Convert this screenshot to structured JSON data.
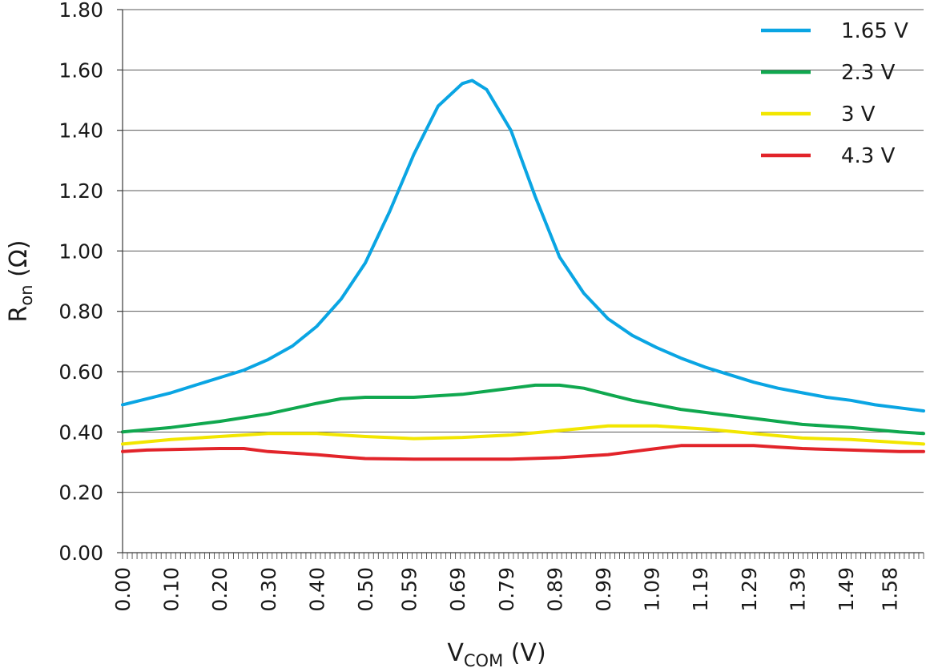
{
  "chart_data": {
    "type": "line",
    "xlabel": {
      "main": "V",
      "sub": "COM",
      "unit": " (V)"
    },
    "ylabel": {
      "main": "R",
      "sub": "on",
      "unit": " (Ω)"
    },
    "xlim": [
      0,
      1.65
    ],
    "ylim": [
      0,
      1.8
    ],
    "grid": true,
    "legend_position": "top-right",
    "y_ticks": [
      0.0,
      0.2,
      0.4,
      0.6,
      0.8,
      1.0,
      1.2,
      1.4,
      1.6,
      1.8
    ],
    "y_tick_labels": [
      "0.00",
      "0.20",
      "0.40",
      "0.60",
      "0.80",
      "1.00",
      "1.20",
      "1.40",
      "1.60",
      "1.80"
    ],
    "x_ticks": [
      0.0,
      0.1,
      0.2,
      0.3,
      0.4,
      0.5,
      0.59,
      0.69,
      0.79,
      0.89,
      0.99,
      1.09,
      1.19,
      1.29,
      1.39,
      1.49,
      1.58
    ],
    "x_tick_labels": [
      "0.00",
      "0.10",
      "0.20",
      "0.30",
      "0.40",
      "0.50",
      "0.59",
      "0.69",
      "0.79",
      "0.89",
      "0.99",
      "1.09",
      "1.19",
      "1.29",
      "1.39",
      "1.49",
      "1.58"
    ],
    "series": [
      {
        "name": "1.65 V",
        "color": "#0aa5e3",
        "points": [
          [
            0,
            0.49
          ],
          [
            0.05,
            0.51
          ],
          [
            0.1,
            0.53
          ],
          [
            0.15,
            0.555
          ],
          [
            0.2,
            0.58
          ],
          [
            0.25,
            0.605
          ],
          [
            0.3,
            0.64
          ],
          [
            0.35,
            0.685
          ],
          [
            0.4,
            0.75
          ],
          [
            0.45,
            0.84
          ],
          [
            0.5,
            0.96
          ],
          [
            0.55,
            1.13
          ],
          [
            0.6,
            1.32
          ],
          [
            0.65,
            1.48
          ],
          [
            0.7,
            1.555
          ],
          [
            0.72,
            1.565
          ],
          [
            0.75,
            1.535
          ],
          [
            0.8,
            1.4
          ],
          [
            0.85,
            1.18
          ],
          [
            0.9,
            0.98
          ],
          [
            0.95,
            0.86
          ],
          [
            1.0,
            0.775
          ],
          [
            1.05,
            0.72
          ],
          [
            1.1,
            0.68
          ],
          [
            1.15,
            0.645
          ],
          [
            1.2,
            0.615
          ],
          [
            1.25,
            0.59
          ],
          [
            1.3,
            0.565
          ],
          [
            1.35,
            0.545
          ],
          [
            1.4,
            0.53
          ],
          [
            1.45,
            0.515
          ],
          [
            1.5,
            0.505
          ],
          [
            1.55,
            0.49
          ],
          [
            1.6,
            0.48
          ],
          [
            1.65,
            0.47
          ]
        ]
      },
      {
        "name": "2.3 V",
        "color": "#10a84f",
        "points": [
          [
            0,
            0.4
          ],
          [
            0.1,
            0.415
          ],
          [
            0.2,
            0.435
          ],
          [
            0.3,
            0.46
          ],
          [
            0.4,
            0.495
          ],
          [
            0.45,
            0.51
          ],
          [
            0.5,
            0.515
          ],
          [
            0.6,
            0.515
          ],
          [
            0.7,
            0.525
          ],
          [
            0.75,
            0.535
          ],
          [
            0.8,
            0.545
          ],
          [
            0.85,
            0.555
          ],
          [
            0.9,
            0.555
          ],
          [
            0.95,
            0.545
          ],
          [
            1.0,
            0.525
          ],
          [
            1.05,
            0.505
          ],
          [
            1.1,
            0.49
          ],
          [
            1.15,
            0.475
          ],
          [
            1.2,
            0.465
          ],
          [
            1.25,
            0.455
          ],
          [
            1.3,
            0.445
          ],
          [
            1.35,
            0.435
          ],
          [
            1.4,
            0.425
          ],
          [
            1.5,
            0.415
          ],
          [
            1.6,
            0.4
          ],
          [
            1.65,
            0.395
          ]
        ]
      },
      {
        "name": "3 V",
        "color": "#f2e600",
        "points": [
          [
            0,
            0.36
          ],
          [
            0.1,
            0.375
          ],
          [
            0.2,
            0.385
          ],
          [
            0.3,
            0.395
          ],
          [
            0.4,
            0.395
          ],
          [
            0.5,
            0.385
          ],
          [
            0.6,
            0.378
          ],
          [
            0.7,
            0.382
          ],
          [
            0.8,
            0.39
          ],
          [
            0.9,
            0.405
          ],
          [
            1.0,
            0.42
          ],
          [
            1.1,
            0.42
          ],
          [
            1.2,
            0.41
          ],
          [
            1.3,
            0.395
          ],
          [
            1.4,
            0.38
          ],
          [
            1.5,
            0.375
          ],
          [
            1.6,
            0.365
          ],
          [
            1.65,
            0.36
          ]
        ]
      },
      {
        "name": "4.3 V",
        "color": "#e2242a",
        "points": [
          [
            0,
            0.335
          ],
          [
            0.05,
            0.34
          ],
          [
            0.2,
            0.345
          ],
          [
            0.25,
            0.345
          ],
          [
            0.3,
            0.335
          ],
          [
            0.4,
            0.325
          ],
          [
            0.45,
            0.318
          ],
          [
            0.5,
            0.312
          ],
          [
            0.6,
            0.31
          ],
          [
            0.7,
            0.31
          ],
          [
            0.8,
            0.31
          ],
          [
            0.9,
            0.315
          ],
          [
            1.0,
            0.325
          ],
          [
            1.05,
            0.335
          ],
          [
            1.1,
            0.345
          ],
          [
            1.15,
            0.355
          ],
          [
            1.2,
            0.355
          ],
          [
            1.3,
            0.355
          ],
          [
            1.35,
            0.35
          ],
          [
            1.4,
            0.345
          ],
          [
            1.5,
            0.34
          ],
          [
            1.6,
            0.335
          ],
          [
            1.65,
            0.335
          ]
        ]
      }
    ]
  }
}
